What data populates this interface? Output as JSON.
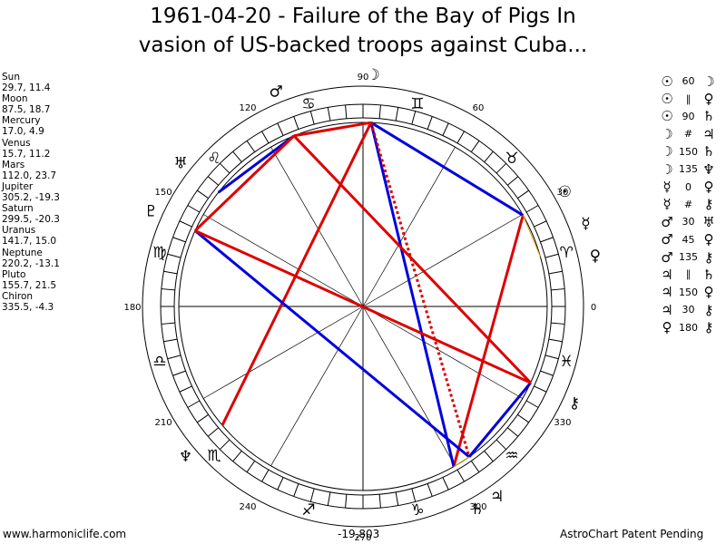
{
  "title": {
    "line1": "1961-04-20 - Failure of the Bay of Pigs In",
    "line2": "vasion of US-backed troops against Cuba..."
  },
  "planets": [
    {
      "name": "Sun",
      "coords": "29.7, 11.4"
    },
    {
      "name": "Moon",
      "coords": "87.5, 18.7"
    },
    {
      "name": "Mercury",
      "coords": "17.0, 4.9"
    },
    {
      "name": "Venus",
      "coords": "15.7, 11.2"
    },
    {
      "name": "Mars",
      "coords": "112.0, 23.7"
    },
    {
      "name": "Jupiter",
      "coords": "305.2, -19.3"
    },
    {
      "name": "Saturn",
      "coords": "299.5, -20.3"
    },
    {
      "name": "Uranus",
      "coords": "141.7, 15.0"
    },
    {
      "name": "Neptune",
      "coords": "220.2, -13.1"
    },
    {
      "name": "Pluto",
      "coords": "155.7, 21.5"
    },
    {
      "name": "Chiron",
      "coords": "335.5, -4.3"
    }
  ],
  "aspects": [
    {
      "p1": "☉",
      "angle": "60",
      "p2": "☽"
    },
    {
      "p1": "☉",
      "angle": "∥",
      "p2": "♀"
    },
    {
      "p1": "☉",
      "angle": "90",
      "p2": "♄"
    },
    {
      "p1": "☽",
      "angle": "#",
      "p2": "♃"
    },
    {
      "p1": "☽",
      "angle": "150",
      "p2": "♄"
    },
    {
      "p1": "☽",
      "angle": "135",
      "p2": "♆"
    },
    {
      "p1": "☿",
      "angle": "0",
      "p2": "♀"
    },
    {
      "p1": "☿",
      "angle": "#",
      "p2": "⚷"
    },
    {
      "p1": "♂",
      "angle": "30",
      "p2": "♅"
    },
    {
      "p1": "♂",
      "angle": "45",
      "p2": "♀"
    },
    {
      "p1": "♂",
      "angle": "135",
      "p2": "⚷"
    },
    {
      "p1": "♃",
      "angle": "∥",
      "p2": "♄"
    },
    {
      "p1": "♃",
      "angle": "150",
      "p2": "♀"
    },
    {
      "p1": "♃",
      "angle": "30",
      "p2": "⚷"
    },
    {
      "p1": "♀",
      "angle": "180",
      "p2": "⚷"
    }
  ],
  "wheel": {
    "degree_labels": [
      {
        "deg": 0,
        "text": "0"
      },
      {
        "deg": 30,
        "text": "30"
      },
      {
        "deg": 60,
        "text": "60"
      },
      {
        "deg": 90,
        "text": "90"
      },
      {
        "deg": 120,
        "text": "120"
      },
      {
        "deg": 150,
        "text": "150"
      },
      {
        "deg": 180,
        "text": "180"
      },
      {
        "deg": 210,
        "text": "210"
      },
      {
        "deg": 240,
        "text": "240"
      },
      {
        "deg": 270,
        "text": "270"
      },
      {
        "deg": 300,
        "text": "300"
      },
      {
        "deg": 330,
        "text": "330"
      }
    ],
    "signs": [
      {
        "deg": 15,
        "glyph": "♈"
      },
      {
        "deg": 45,
        "glyph": "♉"
      },
      {
        "deg": 75,
        "glyph": "♊"
      },
      {
        "deg": 105,
        "glyph": "♋"
      },
      {
        "deg": 135,
        "glyph": "♌"
      },
      {
        "deg": 165,
        "glyph": "♍"
      },
      {
        "deg": 195,
        "glyph": "♎"
      },
      {
        "deg": 225,
        "glyph": "♏"
      },
      {
        "deg": 255,
        "glyph": "♐"
      },
      {
        "deg": 285,
        "glyph": "♑"
      },
      {
        "deg": 315,
        "glyph": "♒"
      },
      {
        "deg": 345,
        "glyph": "♓"
      }
    ],
    "bodies": [
      {
        "key": "sun",
        "deg": 29.7,
        "glyph": "☉"
      },
      {
        "key": "moon",
        "deg": 87.5,
        "glyph": "☽"
      },
      {
        "key": "mercury",
        "deg": 17.0,
        "glyph": "☿"
      },
      {
        "key": "venus",
        "deg": 15.7,
        "glyph": "♀"
      },
      {
        "key": "mars",
        "deg": 112.0,
        "glyph": "♂"
      },
      {
        "key": "jupiter",
        "deg": 305.2,
        "glyph": "♃"
      },
      {
        "key": "saturn",
        "deg": 299.5,
        "glyph": "♄"
      },
      {
        "key": "uranus",
        "deg": 141.7,
        "glyph": "♅"
      },
      {
        "key": "neptune",
        "deg": 220.2,
        "glyph": "♆"
      },
      {
        "key": "pluto",
        "deg": 155.7,
        "glyph": "♇"
      },
      {
        "key": "chiron",
        "deg": 335.5,
        "glyph": "⚷"
      }
    ],
    "aspect_lines": [
      {
        "a": "sun",
        "b": "moon",
        "color": "#0000dd",
        "style": "solid"
      },
      {
        "a": "sun",
        "b": "saturn",
        "color": "#dd0000",
        "style": "solid"
      },
      {
        "a": "moon",
        "b": "mars",
        "color": "#dd0000",
        "style": "solid"
      },
      {
        "a": "moon",
        "b": "saturn",
        "color": "#0000dd",
        "style": "solid"
      },
      {
        "a": "moon",
        "b": "neptune",
        "color": "#dd0000",
        "style": "solid"
      },
      {
        "a": "moon",
        "b": "jupiter",
        "color": "#dd0000",
        "style": "dotted"
      },
      {
        "a": "mars",
        "b": "uranus",
        "color": "#0000dd",
        "style": "solid"
      },
      {
        "a": "mars",
        "b": "pluto",
        "color": "#dd0000",
        "style": "solid"
      },
      {
        "a": "mars",
        "b": "chiron",
        "color": "#dd0000",
        "style": "solid"
      },
      {
        "a": "jupiter",
        "b": "pluto",
        "color": "#0000dd",
        "style": "solid"
      },
      {
        "a": "jupiter",
        "b": "chiron",
        "color": "#0000dd",
        "style": "solid"
      },
      {
        "a": "pluto",
        "b": "chiron",
        "color": "#dd0000",
        "style": "solid"
      },
      {
        "a": "jupiter",
        "b": "saturn",
        "color": "#e0a000",
        "style": "solid"
      },
      {
        "a": "sun",
        "b": "venus",
        "color": "#e0a000",
        "style": "solid"
      }
    ]
  },
  "footer": {
    "left": "www.harmoniclife.com",
    "middle": "-19,803",
    "right": "AstroChart Patent Pending"
  }
}
